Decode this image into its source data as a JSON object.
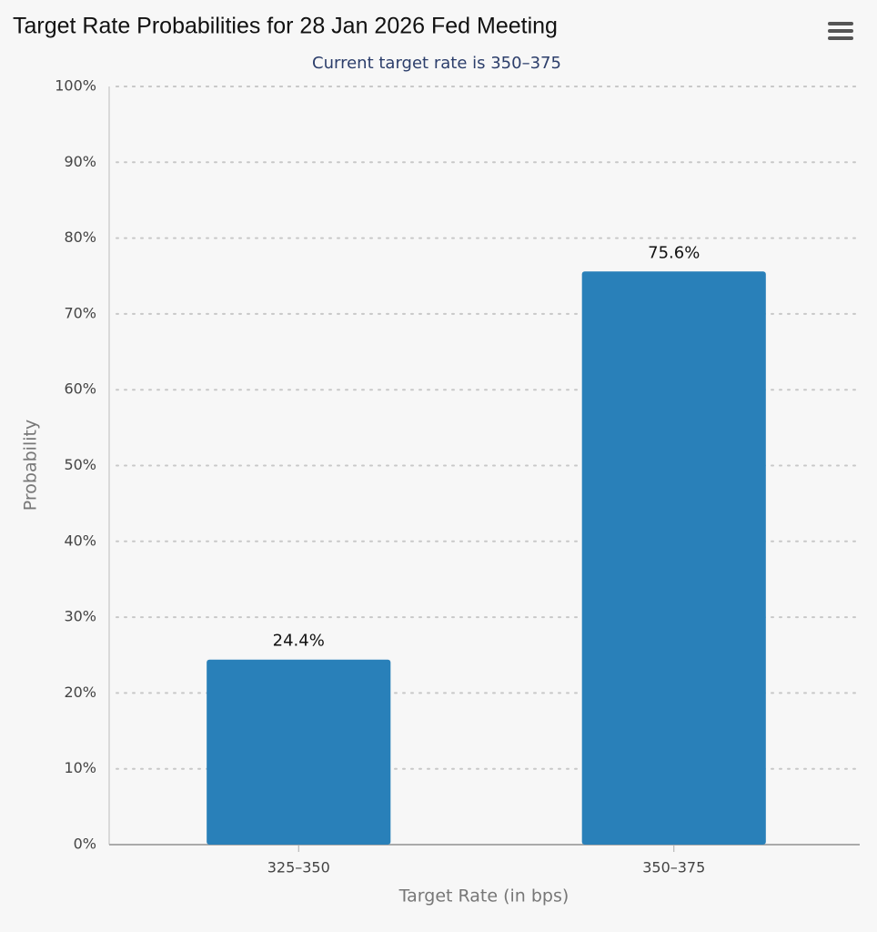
{
  "chart_data": {
    "type": "bar",
    "title": "Target Rate Probabilities for 28 Jan 2026 Fed Meeting",
    "subtitle": "Current target rate is 350–375",
    "x_label": "Target Rate (in bps)",
    "y_label": "Probability",
    "categories": [
      "325–350",
      "350–375"
    ],
    "values": [
      24.4,
      75.6
    ],
    "value_labels": [
      "24.4%",
      "75.6%"
    ],
    "color": "#2980b9",
    "ylim": [
      0,
      100
    ],
    "yticks": [
      {
        "value": 0,
        "label": "0%"
      },
      {
        "value": 10,
        "label": "10%"
      },
      {
        "value": 20,
        "label": "20%"
      },
      {
        "value": 30,
        "label": "30%"
      },
      {
        "value": 40,
        "label": "40%"
      },
      {
        "value": 50,
        "label": "50%"
      },
      {
        "value": 60,
        "label": "60%"
      },
      {
        "value": 70,
        "label": "70%"
      },
      {
        "value": 80,
        "label": "80%"
      },
      {
        "value": 90,
        "label": "90%"
      },
      {
        "value": 100,
        "label": "100%"
      }
    ],
    "grid": true
  }
}
